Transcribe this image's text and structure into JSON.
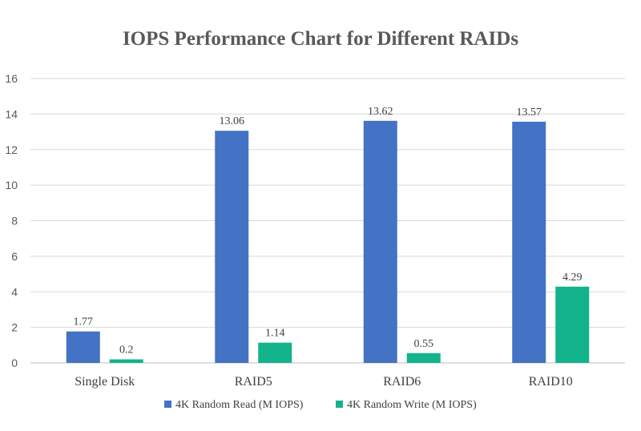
{
  "chart_data": {
    "type": "bar",
    "title": "IOPS Performance Chart for Different RAIDs",
    "xlabel": "",
    "ylabel": "",
    "categories": [
      "Single Disk",
      "RAID5",
      "RAID6",
      "RAID10"
    ],
    "series": [
      {
        "name": "4K Random Read (M IOPS)",
        "color": "#4472C4",
        "values": [
          1.77,
          13.06,
          13.62,
          13.57
        ],
        "labels": [
          "1.77",
          "13.06",
          "13.62",
          "13.57"
        ]
      },
      {
        "name": "4K Random Write (M IOPS)",
        "color": "#13B38B",
        "values": [
          0.2,
          1.14,
          0.55,
          4.29
        ],
        "labels": [
          "0.2",
          "1.14",
          "0.55",
          "4.29"
        ]
      }
    ],
    "ylim": [
      0,
      16
    ],
    "yticks": [
      0,
      2,
      4,
      6,
      8,
      10,
      12,
      14,
      16
    ],
    "grid": true,
    "legend": "bottom"
  }
}
